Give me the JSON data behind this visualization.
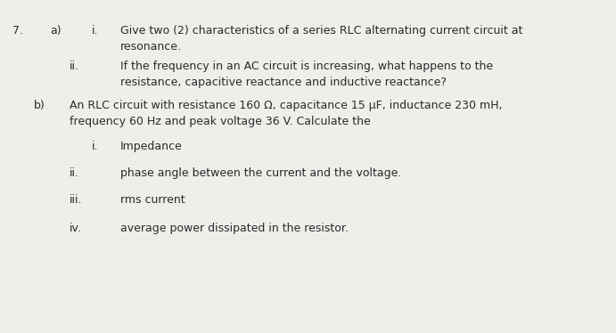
{
  "bg_color": "#f0eeeb",
  "text_color": "#2a2a2a",
  "question_number": "7.",
  "part_a_label": "a)",
  "part_b_label": "b)",
  "sub_i_label": "i.",
  "sub_ii_label": "ii.",
  "sub_iii_label": "iii.",
  "sub_iv_label": "iv.",
  "line1_ai": "Give two (2) characteristics of a series RLC alternating current circuit at",
  "line2_ai": "resonance.",
  "line1_aii": "If the frequency in an AC circuit is increasing, what happens to the",
  "line2_aii": "resistance, capacitive reactance and inductive reactance?",
  "line1_b": "An RLC circuit with resistance 160 Ω, capacitance 15 μF, inductance 230 mH,",
  "line2_b": "frequency 60 Hz and peak voltage 36 V. Calculate the",
  "item_bi": "Impedance",
  "item_bii": "phase angle between the current and the voltage.",
  "item_biii": "rms current",
  "item_biv": "average power dissipated in the resistor.",
  "font_size_main": 9.0
}
